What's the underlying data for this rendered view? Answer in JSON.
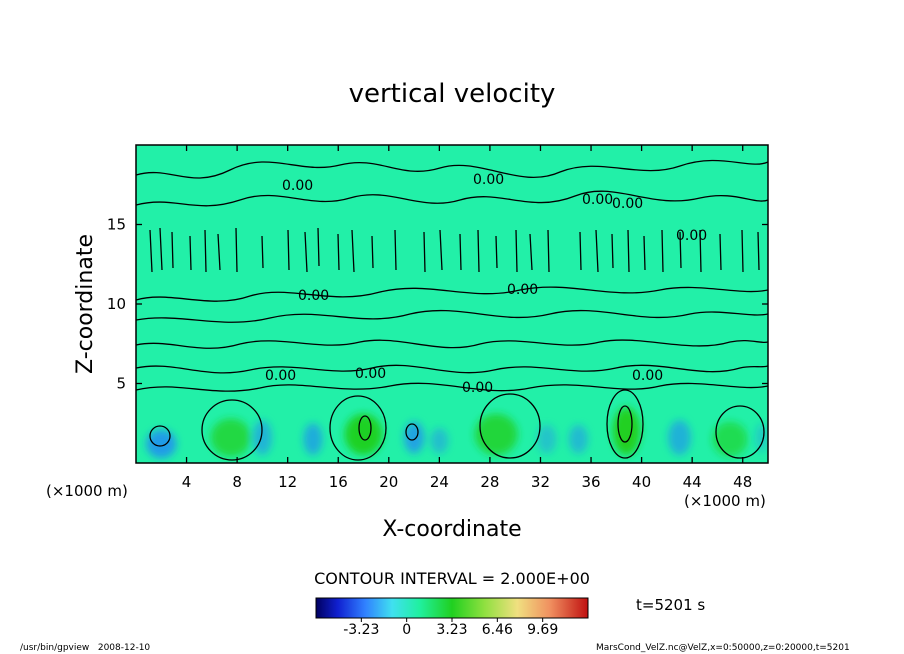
{
  "chart_data": {
    "type": "heatmap",
    "title": "vertical velocity",
    "xlabel": "X-coordinate",
    "ylabel": "Z-coordinate",
    "x_unit_left": "(×1000 m)",
    "x_unit_right": "(×1000 m)",
    "xlim": [
      0,
      50
    ],
    "ylim": [
      0,
      20
    ],
    "xticks": [
      4,
      8,
      12,
      16,
      20,
      24,
      28,
      32,
      36,
      40,
      44,
      48
    ],
    "yticks": [
      5,
      10,
      15
    ],
    "contour_labels": [
      "0.00",
      "0.00",
      "0.00",
      "0.00",
      "0.00",
      "0.00",
      "0.00",
      "0.00",
      "0.00",
      "0.00",
      "0.00"
    ],
    "contour_interval_text": "CONTOUR INTERVAL = 2.000E+00",
    "colorbar": {
      "ticks": [
        "-3.23",
        "0",
        "3.23",
        "6.46",
        "9.69"
      ],
      "range": [
        -6.46,
        12.92
      ]
    },
    "background_value": 0,
    "colors": {
      "background_field": "#22f0a8",
      "negative": "#2090f0",
      "positive": "#20d020"
    },
    "cells": [
      {
        "x": 2,
        "z": 1.2,
        "w": 2.4,
        "h": 1.8,
        "v": -3.5
      },
      {
        "x": 7.5,
        "z": 1.6,
        "w": 3.2,
        "h": 2.4,
        "v": 3.0
      },
      {
        "x": 10,
        "z": 1.6,
        "w": 1.5,
        "h": 2.2,
        "v": -2.5
      },
      {
        "x": 14,
        "z": 1.5,
        "w": 1.5,
        "h": 2.0,
        "v": -2.8
      },
      {
        "x": 18,
        "z": 1.8,
        "w": 3.0,
        "h": 2.6,
        "v": 3.8
      },
      {
        "x": 22,
        "z": 1.6,
        "w": 1.6,
        "h": 2.0,
        "v": -3.2
      },
      {
        "x": 24,
        "z": 1.4,
        "w": 1.4,
        "h": 1.6,
        "v": -2.0
      },
      {
        "x": 28.5,
        "z": 1.8,
        "w": 3.4,
        "h": 2.6,
        "v": 3.2
      },
      {
        "x": 32.5,
        "z": 1.5,
        "w": 1.5,
        "h": 1.8,
        "v": -1.8
      },
      {
        "x": 35,
        "z": 1.5,
        "w": 1.5,
        "h": 1.8,
        "v": -2.2
      },
      {
        "x": 38.8,
        "z": 2.0,
        "w": 2.2,
        "h": 3.0,
        "v": 4.5
      },
      {
        "x": 43,
        "z": 1.6,
        "w": 1.8,
        "h": 2.2,
        "v": -2.6
      },
      {
        "x": 47,
        "z": 1.5,
        "w": 2.8,
        "h": 2.2,
        "v": 2.5
      },
      {
        "x": 49.5,
        "z": 1.6,
        "w": 1.0,
        "h": 1.8,
        "v": -1.5
      }
    ]
  },
  "time_label": "t=5201 s",
  "footer": {
    "left": "/usr/bin/gpview   2008-12-10",
    "right": "MarsCond_VelZ.nc@VelZ,x=0:50000,z=0:20000,t=5201"
  }
}
